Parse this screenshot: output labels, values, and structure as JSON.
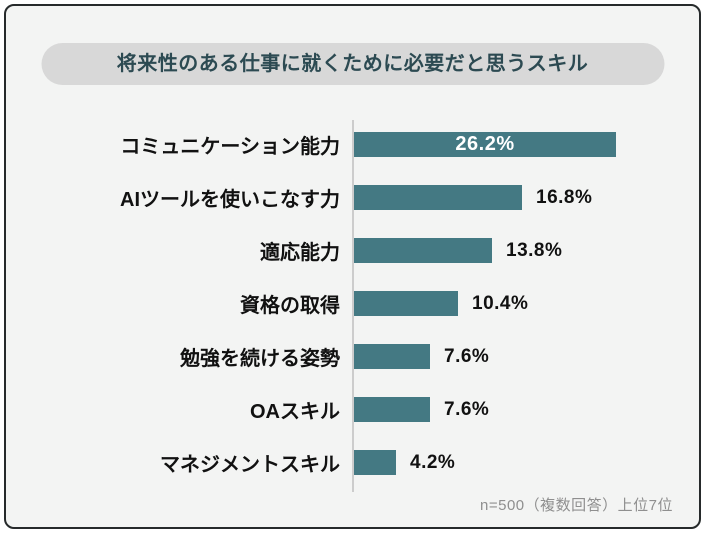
{
  "title": {
    "text": "将来性のある仕事に就くために必要だと思うスキル",
    "background": "#d8d8d8",
    "color": "#2c4a52"
  },
  "footer": {
    "note": "n=500（複数回答）上位7位",
    "color": "#8f8f8f"
  },
  "chart_data": {
    "type": "bar",
    "orientation": "horizontal",
    "title": "将来性のある仕事に就くために必要だと思うスキル",
    "categories": [
      "コミュニケーション能力",
      "AIツールを使いこなす力",
      "適応能力",
      "資格の取得",
      "勉強を続ける姿勢",
      "OAスキル",
      "マネジメントスキル"
    ],
    "values": [
      26.2,
      16.8,
      13.8,
      10.4,
      7.6,
      7.6,
      4.2
    ],
    "value_labels": [
      "26.2%",
      "16.8%",
      "13.8%",
      "10.4%",
      "7.6%",
      "7.6%",
      "4.2%"
    ],
    "unit": "%",
    "bar_color": "#447983",
    "axis_line_color": "#cccccc",
    "xlim": [
      0,
      30
    ],
    "grid": false,
    "legend": false,
    "value_label_inside_threshold": 20,
    "note": "n=500（複数回答）上位7位"
  }
}
